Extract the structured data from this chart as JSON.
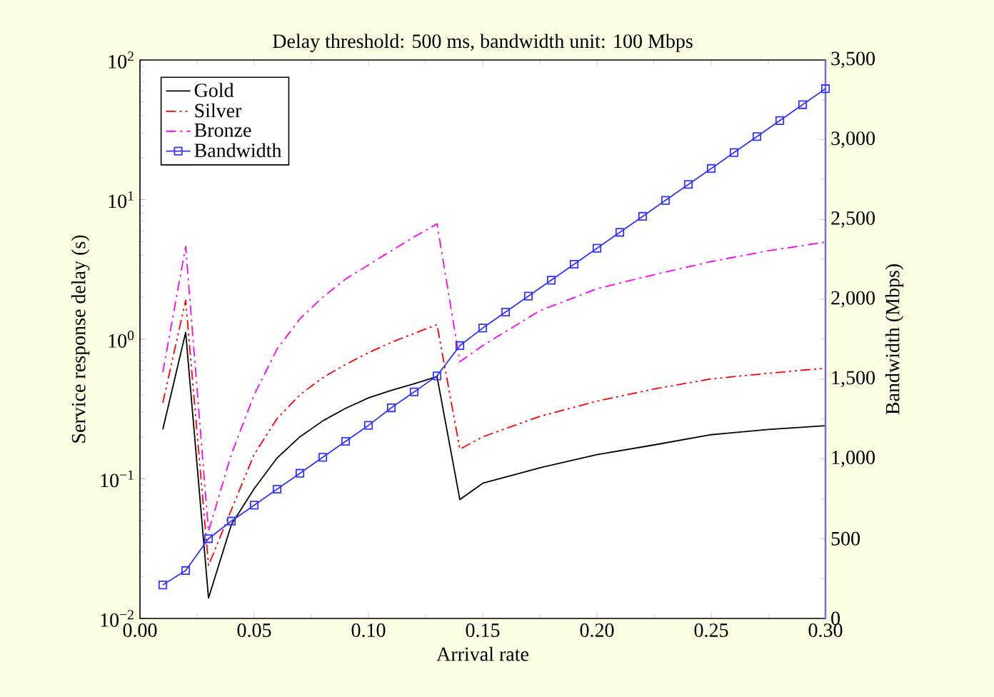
{
  "chart_data": {
    "type": "line",
    "title": "Delay threshold: 500 ms, bandwidth unit: 100 Mbps",
    "xlabel": "Arrival rate",
    "ylabel": "Service response delay (s)",
    "y2label": "Bandwidth (Mbps)",
    "log": "y",
    "legend": "top left",
    "xlim": [
      0,
      0.3
    ],
    "xticks": [
      {
        "value": 0,
        "label": "0.00"
      },
      0.05,
      {
        "value": 0.1,
        "label": "0.10"
      },
      0.15,
      {
        "value": 0.2,
        "label": "0.20"
      },
      0.25,
      {
        "value": 0.3,
        "label": "0.30"
      }
    ],
    "ylim": [
      0.01,
      100
    ],
    "yticks": [
      {
        "value": 0.01,
        "label": "10$^{−2}$"
      },
      {
        "value": 0.1,
        "label": "10$^{−1}$"
      },
      {
        "value": 1,
        "label": "10$^{0}$"
      },
      {
        "value": 10,
        "label": "10$^{1}$"
      },
      {
        "value": 100,
        "label": "10$^{2}$"
      }
    ],
    "y2lim": [
      0,
      3500
    ],
    "y2ticks": [
      0,
      500,
      {
        "value": 1000,
        "label": "1,000"
      },
      {
        "value": 1500,
        "label": "1,500"
      },
      {
        "value": 2000,
        "label": "2,000"
      },
      {
        "value": 2500,
        "label": "2,500"
      },
      {
        "value": 3000,
        "label": "3,000"
      },
      {
        "value": 3500,
        "label": "3,500"
      }
    ],
    "series": [
      {
        "name": "Gold",
        "color": "#000000",
        "line_style": "solid",
        "marker": "none",
        "x": [
          0.01,
          0.02,
          0.03,
          0.04,
          0.05,
          0.06,
          0.07,
          0.08,
          0.09,
          0.1,
          0.11,
          0.12,
          0.13,
          0.14,
          0.15,
          0.175,
          0.2,
          0.225,
          0.25,
          0.275,
          0.3
        ],
        "values": [
          0.226,
          1.12,
          0.014,
          0.047,
          0.085,
          0.141,
          0.2,
          0.26,
          0.32,
          0.38,
          0.43,
          0.48,
          0.54,
          0.071,
          0.093,
          0.12,
          0.149,
          0.175,
          0.207,
          0.226,
          0.24
        ]
      },
      {
        "name": "Silver",
        "color": "#ff0000",
        "line_style": "dashdotdotted",
        "marker": "none",
        "x": [
          0.01,
          0.02,
          0.03,
          0.04,
          0.05,
          0.06,
          0.07,
          0.08,
          0.09,
          0.1,
          0.11,
          0.12,
          0.13,
          0.14,
          0.15,
          0.175,
          0.2,
          0.225,
          0.25,
          0.275,
          0.3
        ],
        "values": [
          0.35,
          1.9,
          0.024,
          0.06,
          0.15,
          0.27,
          0.4,
          0.53,
          0.66,
          0.8,
          0.95,
          1.1,
          1.27,
          0.163,
          0.2,
          0.28,
          0.36,
          0.44,
          0.52,
          0.57,
          0.62
        ]
      },
      {
        "name": "Bronze",
        "color": "#ff00ff",
        "line_style": "dashdotted",
        "marker": "none",
        "x": [
          0.01,
          0.02,
          0.03,
          0.04,
          0.05,
          0.06,
          0.07,
          0.08,
          0.09,
          0.1,
          0.11,
          0.12,
          0.13,
          0.14,
          0.15,
          0.175,
          0.2,
          0.225,
          0.25,
          0.275,
          0.3
        ],
        "values": [
          0.58,
          4.6,
          0.042,
          0.15,
          0.4,
          0.85,
          1.4,
          2.0,
          2.7,
          3.4,
          4.3,
          5.4,
          6.7,
          0.69,
          0.9,
          1.6,
          2.3,
          2.9,
          3.6,
          4.3,
          4.96
        ]
      },
      {
        "name": "Bandwidth",
        "color": "#3333ff",
        "line_style": "solid",
        "marker": "square",
        "axis": "y2",
        "x": [
          0.01,
          0.02,
          0.03,
          0.04,
          0.05,
          0.06,
          0.07,
          0.08,
          0.09,
          0.1,
          0.11,
          0.12,
          0.13,
          0.14,
          0.15,
          0.16,
          0.17,
          0.18,
          0.19,
          0.2,
          0.21,
          0.22,
          0.23,
          0.24,
          0.25,
          0.26,
          0.27,
          0.28,
          0.29,
          0.3
        ],
        "values": [
          210,
          300,
          500,
          610,
          710,
          810,
          910,
          1010,
          1110,
          1210,
          1320,
          1420,
          1520,
          1710,
          1820,
          1920,
          2020,
          2120,
          2220,
          2320,
          2420,
          2520,
          2620,
          2720,
          2820,
          2920,
          3020,
          3120,
          3220,
          3320
        ]
      }
    ]
  }
}
